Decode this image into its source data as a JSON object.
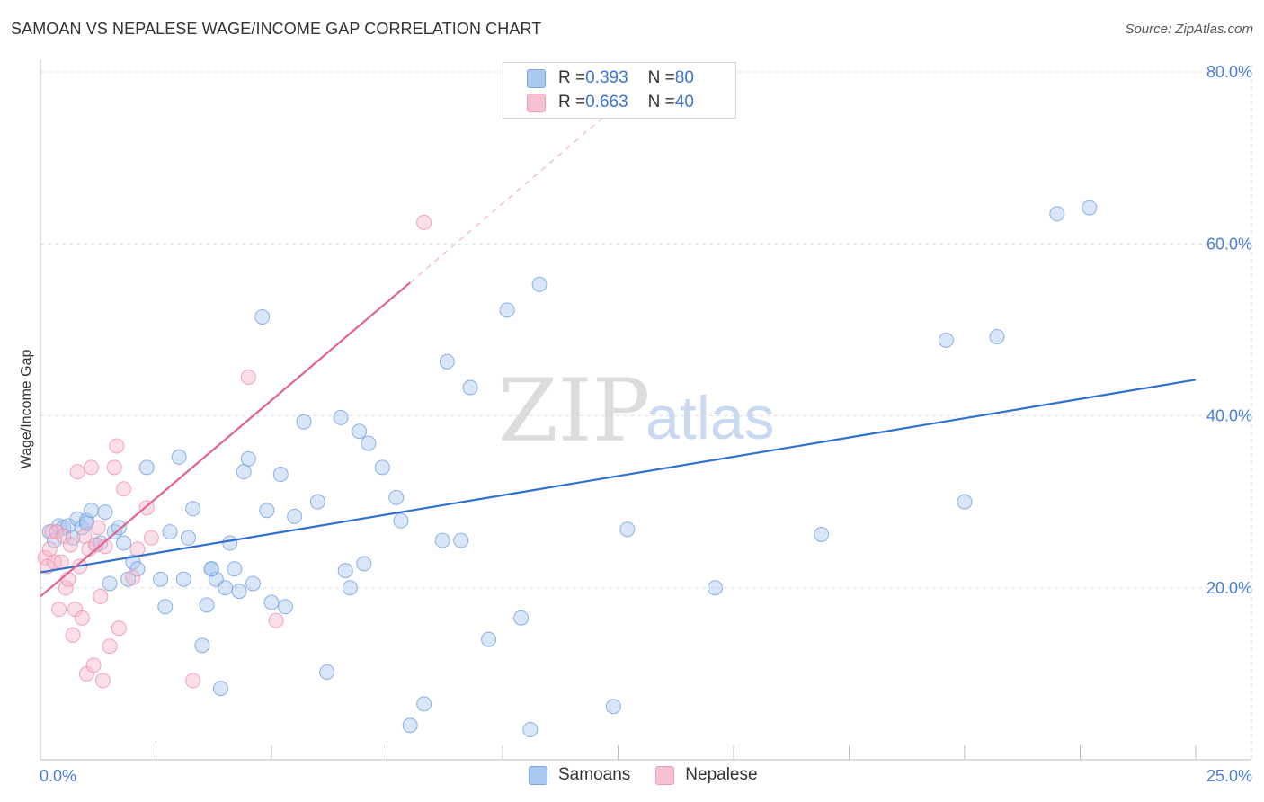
{
  "header": {
    "title": "SAMOAN VS NEPALESE WAGE/INCOME GAP CORRELATION CHART",
    "source": "Source: ZipAtlas.com"
  },
  "legend": {
    "rows": [
      {
        "r_label": "R = ",
        "r_value": "0.393",
        "n_label": "N = ",
        "n_value": "80",
        "color": "#a8c8f0"
      },
      {
        "r_label": "R = ",
        "r_value": "0.663",
        "n_label": "N = ",
        "n_value": "40",
        "color": "#f6b8cc"
      }
    ]
  },
  "bottom_legend": {
    "items": [
      {
        "label": "Samoans",
        "color": "#a8c8f0"
      },
      {
        "label": "Nepalese",
        "color": "#f6b8cc"
      }
    ]
  },
  "watermark": {
    "zip": "ZIP",
    "atlas": "atlas"
  },
  "chart_data": {
    "type": "scatter",
    "title": "SAMOAN VS NEPALESE WAGE/INCOME GAP CORRELATION CHART",
    "xlabel": "",
    "ylabel": "Wage/Income Gap",
    "xlim": [
      0,
      25
    ],
    "ylim": [
      0,
      80
    ],
    "x_tick_labels": [
      "0.0%",
      "25.0%"
    ],
    "y_ticks": [
      20,
      40,
      60,
      80
    ],
    "y_tick_labels": [
      "20.0%",
      "40.0%",
      "60.0%",
      "80.0%"
    ],
    "grid": true,
    "series": [
      {
        "name": "Samoans",
        "color": "#6f9fe0",
        "fill": "#a8c8f0",
        "line_color": "#2f6fd0",
        "trend": {
          "x": [
            0,
            25
          ],
          "y": [
            21.8,
            44.2
          ]
        },
        "points": [
          [
            0.2,
            26.5
          ],
          [
            0.3,
            25.5
          ],
          [
            0.4,
            27.2
          ],
          [
            0.5,
            27.0
          ],
          [
            0.6,
            27.2
          ],
          [
            0.7,
            25.8
          ],
          [
            0.8,
            28.0
          ],
          [
            0.9,
            27.0
          ],
          [
            1.0,
            27.8
          ],
          [
            1.1,
            29.0
          ],
          [
            1.2,
            25.0
          ],
          [
            1.3,
            25.2
          ],
          [
            1.4,
            28.8
          ],
          [
            1.5,
            20.5
          ],
          [
            1.6,
            26.5
          ],
          [
            1.7,
            27.0
          ],
          [
            1.8,
            25.2
          ],
          [
            1.9,
            21.0
          ],
          [
            2.0,
            23.0
          ],
          [
            2.1,
            22.2
          ],
          [
            2.3,
            34.0
          ],
          [
            2.6,
            21.0
          ],
          [
            2.7,
            17.8
          ],
          [
            2.8,
            26.5
          ],
          [
            3.0,
            35.2
          ],
          [
            3.1,
            21.0
          ],
          [
            3.2,
            25.8
          ],
          [
            3.3,
            29.2
          ],
          [
            3.5,
            13.3
          ],
          [
            3.6,
            18.0
          ],
          [
            3.7,
            22.2
          ],
          [
            3.8,
            21.0
          ],
          [
            3.9,
            8.3
          ],
          [
            4.0,
            20.0
          ],
          [
            4.1,
            25.2
          ],
          [
            4.2,
            22.2
          ],
          [
            4.3,
            19.6
          ],
          [
            4.4,
            33.5
          ],
          [
            4.5,
            35.0
          ],
          [
            4.6,
            20.5
          ],
          [
            4.8,
            51.5
          ],
          [
            4.9,
            29.0
          ],
          [
            5.0,
            18.3
          ],
          [
            5.2,
            33.2
          ],
          [
            5.3,
            17.8
          ],
          [
            5.5,
            28.3
          ],
          [
            5.7,
            39.3
          ],
          [
            6.0,
            30.0
          ],
          [
            6.2,
            10.2
          ],
          [
            6.5,
            39.8
          ],
          [
            6.6,
            22.0
          ],
          [
            6.7,
            20.0
          ],
          [
            6.9,
            38.2
          ],
          [
            7.0,
            22.8
          ],
          [
            7.1,
            36.8
          ],
          [
            7.4,
            34.0
          ],
          [
            7.7,
            30.5
          ],
          [
            7.8,
            27.8
          ],
          [
            8.0,
            4.0
          ],
          [
            8.3,
            6.5
          ],
          [
            8.7,
            25.5
          ],
          [
            8.8,
            46.3
          ],
          [
            9.1,
            25.5
          ],
          [
            9.3,
            43.3
          ],
          [
            9.7,
            14.0
          ],
          [
            10.1,
            52.3
          ],
          [
            10.4,
            16.5
          ],
          [
            10.6,
            3.5
          ],
          [
            10.8,
            55.3
          ],
          [
            12.4,
            6.2
          ],
          [
            12.7,
            26.8
          ],
          [
            14.6,
            20.0
          ],
          [
            16.9,
            26.2
          ],
          [
            19.6,
            48.8
          ],
          [
            20.0,
            30.0
          ],
          [
            20.7,
            49.2
          ],
          [
            22.0,
            63.5
          ],
          [
            22.7,
            64.2
          ],
          [
            1.0,
            27.5
          ],
          [
            3.7,
            22.2
          ]
        ]
      },
      {
        "name": "Nepalese",
        "color": "#ee8fae",
        "fill": "#f6b8cc",
        "line_color": "#e2628f",
        "trend": {
          "x": [
            0,
            8
          ],
          "y": [
            19.0,
            55.5
          ]
        },
        "trend_dashed": {
          "x": [
            8,
            13
          ],
          "y": [
            55.5,
            78.5
          ]
        },
        "points": [
          [
            0.1,
            23.5
          ],
          [
            0.15,
            22.5
          ],
          [
            0.2,
            24.5
          ],
          [
            0.25,
            26.5
          ],
          [
            0.3,
            23.0
          ],
          [
            0.35,
            26.5
          ],
          [
            0.4,
            17.5
          ],
          [
            0.5,
            26.0
          ],
          [
            0.55,
            20.0
          ],
          [
            0.6,
            21.0
          ],
          [
            0.7,
            14.5
          ],
          [
            0.75,
            17.5
          ],
          [
            0.8,
            33.5
          ],
          [
            0.85,
            22.5
          ],
          [
            0.9,
            16.5
          ],
          [
            0.95,
            26.0
          ],
          [
            1.0,
            10.0
          ],
          [
            1.05,
            24.5
          ],
          [
            1.1,
            34.0
          ],
          [
            1.15,
            11.0
          ],
          [
            1.2,
            25.0
          ],
          [
            1.3,
            19.0
          ],
          [
            1.35,
            9.2
          ],
          [
            1.4,
            24.8
          ],
          [
            1.5,
            13.2
          ],
          [
            1.6,
            34.0
          ],
          [
            1.65,
            36.5
          ],
          [
            1.7,
            15.3
          ],
          [
            1.8,
            31.5
          ],
          [
            2.0,
            21.2
          ],
          [
            2.1,
            24.5
          ],
          [
            2.3,
            29.3
          ],
          [
            2.4,
            25.8
          ],
          [
            3.3,
            9.2
          ],
          [
            4.5,
            44.5
          ],
          [
            5.1,
            16.2
          ],
          [
            8.3,
            62.5
          ],
          [
            0.45,
            23.0
          ],
          [
            1.25,
            27.0
          ],
          [
            0.65,
            25.0
          ]
        ]
      }
    ]
  }
}
